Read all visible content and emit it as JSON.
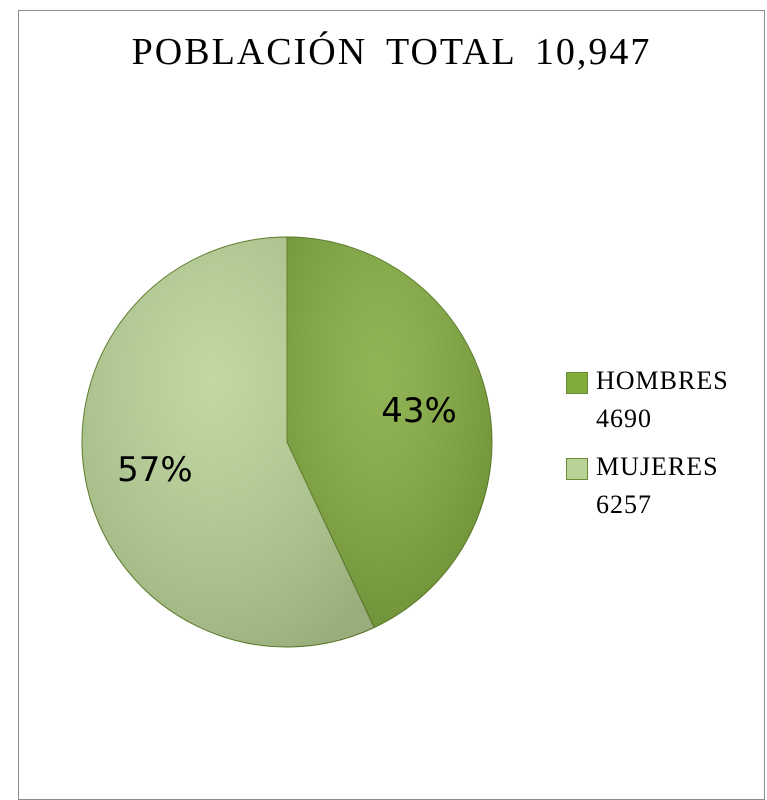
{
  "chart_data": {
    "type": "pie",
    "title": "POBLACIÓN TOTAL 10,947",
    "categories": [
      "HOMBRES 4690",
      "MUJERES 6257"
    ],
    "values": [
      43,
      57
    ],
    "value_labels": [
      "43%",
      "57%"
    ],
    "colors": [
      "#82ab3e",
      "#b9d396"
    ],
    "legend": "right"
  }
}
